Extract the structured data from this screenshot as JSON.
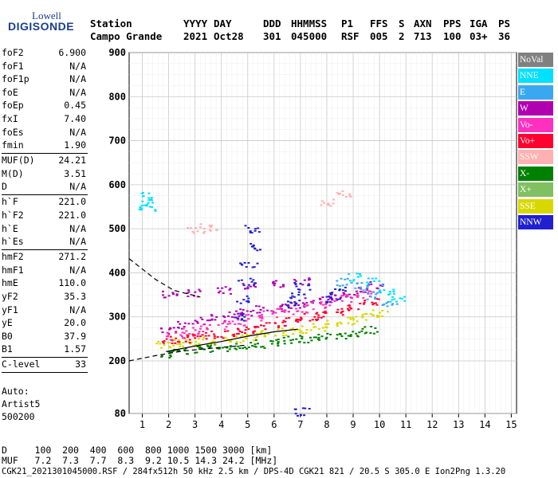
{
  "logo": {
    "top": "Lowell",
    "bottom": "DIGISONDE"
  },
  "header": {
    "station_label": "Station",
    "station_value": "Campo Grande",
    "columns": [
      {
        "label": "YYYY",
        "value": "2021"
      },
      {
        "label": "DAY",
        "value": "Oct28"
      },
      {
        "label": "DDD",
        "value": "301"
      },
      {
        "label": "HHMMSS",
        "value": "045000"
      },
      {
        "label": "P1",
        "value": "RSF"
      },
      {
        "label": "FFS",
        "value": "005"
      },
      {
        "label": "S",
        "value": "2"
      },
      {
        "label": "AXN",
        "value": "713"
      },
      {
        "label": "PPS",
        "value": "100"
      },
      {
        "label": "IGA",
        "value": "03+"
      },
      {
        "label": "PS",
        "value": "36"
      }
    ]
  },
  "parameters": [
    {
      "label": "foF2",
      "value": "6.900"
    },
    {
      "label": "foF1",
      "value": "N/A"
    },
    {
      "label": "foF1p",
      "value": "N/A"
    },
    {
      "label": "foE",
      "value": "N/A"
    },
    {
      "label": "foEp",
      "value": "0.45"
    },
    {
      "label": "fxI",
      "value": "7.40"
    },
    {
      "label": "foEs",
      "value": "N/A"
    },
    {
      "label": "fmin",
      "value": "1.90",
      "sep_after": true
    },
    {
      "label": "MUF(D)",
      "value": "24.21"
    },
    {
      "label": "M(D)",
      "value": "3.51"
    },
    {
      "label": "D",
      "value": "N/A",
      "sep_after": true
    },
    {
      "label": "h`F",
      "value": "221.0"
    },
    {
      "label": "h`F2",
      "value": "221.0"
    },
    {
      "label": "h`E",
      "value": "N/A"
    },
    {
      "label": "h`Es",
      "value": "N/A",
      "sep_after": true
    },
    {
      "label": "hmF2",
      "value": "271.2"
    },
    {
      "label": "hmF1",
      "value": "N/A"
    },
    {
      "label": "hmE",
      "value": "110.0"
    },
    {
      "label": "yF2",
      "value": "35.3"
    },
    {
      "label": "yF1",
      "value": "N/A"
    },
    {
      "label": "yE",
      "value": "20.0"
    },
    {
      "label": "B0",
      "value": "37.9"
    },
    {
      "label": "B1",
      "value": "1.57",
      "sep_after": true
    },
    {
      "label": "C-level",
      "value": "33",
      "sep_after": true
    }
  ],
  "autoscaling": {
    "line1": "Auto:",
    "line2": "Artist5",
    "line3": "500200"
  },
  "legend": [
    {
      "label": "NoVal",
      "color": "#808080"
    },
    {
      "label": "NNE",
      "color": "#00e0ff"
    },
    {
      "label": "E",
      "color": "#3aa8f0"
    },
    {
      "label": "W",
      "color": "#b000b0"
    },
    {
      "label": "Vo-",
      "color": "#ff30c0"
    },
    {
      "label": "Vo+",
      "color": "#ff0030"
    },
    {
      "label": "SSW",
      "color": "#ffb0b0"
    },
    {
      "label": "X-",
      "color": "#008000"
    },
    {
      "label": "X+",
      "color": "#80c060"
    },
    {
      "label": "SSE",
      "color": "#d8d800"
    },
    {
      "label": "NNW",
      "color": "#2020d0"
    }
  ],
  "footer": {
    "d_line": "D     100  200  400  600  800 1000 1500 3000 [km]",
    "muf_line": "MUF   7.2  7.3  7.7  8.3  9.2 10.5 14.3 24.2 [MHz]",
    "file_line": "CGK21_2021301045000.RSF / 284fx512h 50 kHz 2.5 km / DPS-4D CGK21 821 / 20.5 S 305.0 E Ion2Png 1.3.20"
  },
  "chart_data": {
    "type": "scatter",
    "title": "",
    "xlabel": "",
    "ylabel": "",
    "xlim": [
      0.5,
      15.2
    ],
    "ylim": [
      80,
      900
    ],
    "xticks": [
      "1",
      "2",
      "3",
      "4",
      "5",
      "6",
      "7",
      "8",
      "9",
      "10",
      "11",
      "12",
      "13",
      "14",
      "15"
    ],
    "yticks": [
      "80",
      "200",
      "300",
      "400",
      "500",
      "600",
      "700",
      "800",
      "900"
    ],
    "grid": true,
    "series": [
      {
        "name": "X-",
        "color": "#008000",
        "points": [
          [
            1.9,
            218
          ],
          [
            2.4,
            224
          ],
          [
            3.0,
            227
          ],
          [
            3.6,
            230
          ],
          [
            4.2,
            232
          ],
          [
            4.8,
            236
          ],
          [
            5.4,
            240
          ],
          [
            6.0,
            244
          ],
          [
            6.6,
            248
          ],
          [
            7.2,
            252
          ],
          [
            7.8,
            255
          ],
          [
            8.4,
            260
          ],
          [
            9.0,
            266
          ],
          [
            9.6,
            272
          ]
        ]
      },
      {
        "name": "SSE",
        "color": "#d8d800",
        "points": [
          [
            1.8,
            238
          ],
          [
            2.3,
            242
          ],
          [
            2.8,
            244
          ],
          [
            3.4,
            246
          ],
          [
            4.0,
            248
          ],
          [
            4.6,
            252
          ],
          [
            5.2,
            256
          ],
          [
            5.8,
            262
          ],
          [
            6.4,
            268
          ],
          [
            7.0,
            272
          ],
          [
            7.6,
            278
          ],
          [
            8.2,
            284
          ],
          [
            8.8,
            292
          ],
          [
            9.4,
            300
          ],
          [
            10.0,
            310
          ]
        ]
      },
      {
        "name": "Vo+",
        "color": "#ff0030",
        "points": [
          [
            2.0,
            248
          ],
          [
            2.5,
            252
          ],
          [
            3.1,
            256
          ],
          [
            3.7,
            262
          ],
          [
            4.3,
            266
          ],
          [
            4.9,
            272
          ],
          [
            5.5,
            280
          ],
          [
            6.1,
            286
          ],
          [
            6.7,
            292
          ],
          [
            7.3,
            300
          ],
          [
            7.9,
            306
          ],
          [
            8.5,
            314
          ],
          [
            9.1,
            324
          ],
          [
            9.7,
            336
          ]
        ]
      },
      {
        "name": "W",
        "color": "#b000b0",
        "points": [
          [
            2.0,
            268
          ],
          [
            2.6,
            282
          ],
          [
            3.2,
            292
          ],
          [
            3.8,
            298
          ],
          [
            4.4,
            306
          ],
          [
            5.0,
            312
          ],
          [
            5.6,
            318
          ],
          [
            6.2,
            322
          ],
          [
            6.8,
            330
          ],
          [
            7.4,
            336
          ],
          [
            8.0,
            344
          ],
          [
            8.6,
            352
          ],
          [
            9.2,
            360
          ],
          [
            9.8,
            372
          ],
          [
            2.0,
            352
          ],
          [
            3.0,
            356
          ],
          [
            4.0,
            362
          ],
          [
            5.0,
            370
          ],
          [
            6.0,
            376
          ],
          [
            7.0,
            382
          ]
        ]
      },
      {
        "name": "Vo-",
        "color": "#ff30c0",
        "points": [
          [
            2.2,
            258
          ],
          [
            2.8,
            268
          ],
          [
            3.4,
            276
          ],
          [
            4.0,
            282
          ],
          [
            4.6,
            290
          ],
          [
            5.2,
            298
          ],
          [
            5.8,
            306
          ],
          [
            6.4,
            314
          ],
          [
            7.0,
            320
          ],
          [
            7.6,
            328
          ],
          [
            8.2,
            336
          ],
          [
            8.8,
            344
          ],
          [
            9.4,
            352
          ]
        ]
      },
      {
        "name": "NNW",
        "color": "#2020d0",
        "points": [
          [
            4.6,
            300
          ],
          [
            4.8,
            340
          ],
          [
            4.9,
            380
          ],
          [
            5.0,
            420
          ],
          [
            5.1,
            460
          ],
          [
            5.2,
            500
          ],
          [
            6.6,
            330
          ],
          [
            6.8,
            350
          ],
          [
            7.0,
            370
          ],
          [
            8.2,
            340
          ],
          [
            8.4,
            360
          ],
          [
            7.0,
            85
          ]
        ]
      },
      {
        "name": "NNE",
        "color": "#00e0ff",
        "points": [
          [
            1.1,
            560
          ],
          [
            1.1,
            575
          ],
          [
            1.15,
            550
          ],
          [
            9.0,
            392
          ],
          [
            9.8,
            380
          ],
          [
            10.2,
            360
          ],
          [
            10.6,
            340
          ]
        ]
      },
      {
        "name": "E",
        "color": "#3aa8f0",
        "points": [
          [
            8.6,
            380
          ],
          [
            9.2,
            370
          ],
          [
            9.8,
            350
          ],
          [
            10.4,
            330
          ]
        ]
      },
      {
        "name": "SSW",
        "color": "#ffb0b0",
        "points": [
          [
            3.0,
            500
          ],
          [
            3.5,
            505
          ],
          [
            8.0,
            560
          ],
          [
            8.6,
            580
          ]
        ]
      }
    ],
    "curves": [
      {
        "style": "dashed",
        "points": [
          [
            0.5,
            432
          ],
          [
            1.5,
            385
          ],
          [
            2.2,
            360
          ],
          [
            3.2,
            345
          ]
        ]
      },
      {
        "style": "dashed",
        "points": [
          [
            0.5,
            200
          ],
          [
            1.5,
            212
          ],
          [
            2.5,
            222
          ],
          [
            3.5,
            228
          ],
          [
            5.0,
            236
          ]
        ]
      },
      {
        "style": "solid",
        "points": [
          [
            1.9,
            221
          ],
          [
            2.5,
            228
          ],
          [
            3.2,
            236
          ],
          [
            4.0,
            244
          ],
          [
            5.0,
            256
          ],
          [
            6.0,
            266
          ],
          [
            6.9,
            272
          ]
        ]
      }
    ]
  }
}
